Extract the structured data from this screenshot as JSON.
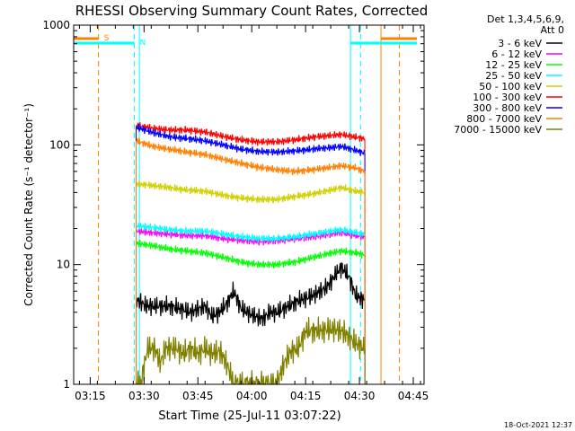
{
  "chart_data": {
    "type": "line",
    "title": "RHESSI Observing Summary Count Rates, Corrected",
    "xlabel": "Start Time (25-Jul-11 03:07:22)",
    "ylabel": "Corrected Count Rate (s⁻¹ detector⁻¹)",
    "yscale": "log",
    "xlim_minutes": [
      3.4,
      101.0
    ],
    "ylim": [
      1,
      1000
    ],
    "x_ticks": [
      {
        "minutes": 8,
        "label": "03:15"
      },
      {
        "minutes": 23,
        "label": "03:30"
      },
      {
        "minutes": 38,
        "label": "03:45"
      },
      {
        "minutes": 53,
        "label": "04:00"
      },
      {
        "minutes": 68,
        "label": "04:15"
      },
      {
        "minutes": 83,
        "label": "04:30"
      },
      {
        "minutes": 98,
        "label": "04:45"
      }
    ],
    "y_ticks": [
      {
        "value": 1,
        "label": "1"
      },
      {
        "value": 10,
        "label": "10"
      },
      {
        "value": 100,
        "label": "100"
      },
      {
        "value": 1000,
        "label": "1000"
      }
    ],
    "legend": {
      "position": "outside-right",
      "header": [
        "Det 1,3,4,5,6,9,",
        "Att 0"
      ]
    },
    "markers": {
      "saa": {
        "label": "S",
        "start": 3.4,
        "end": 10.3,
        "color": "#ff8000",
        "dash_at": [
          10.3,
          94.1
        ],
        "solid_at": [
          89.0
        ]
      },
      "night": {
        "label": "N",
        "start": 3.4,
        "end": 20.3,
        "color": "#00ffff",
        "dash_at": [
          20.3,
          83.3
        ],
        "solid_at": [
          21.7,
          80.5
        ]
      }
    },
    "series": [
      {
        "name": "3 - 6 keV",
        "color": "#000000",
        "start": 20.8,
        "end": 84.5,
        "points": [
          [
            21,
            5
          ],
          [
            24,
            4.5
          ],
          [
            27,
            4.5
          ],
          [
            30,
            4.5
          ],
          [
            33,
            4.3
          ],
          [
            36,
            4
          ],
          [
            40,
            4.5
          ],
          [
            42,
            3.7
          ],
          [
            44,
            4
          ],
          [
            46,
            4.7
          ],
          [
            48,
            6
          ],
          [
            50,
            4.3
          ],
          [
            53,
            3.8
          ],
          [
            56,
            3.5
          ],
          [
            58,
            4
          ],
          [
            60,
            4
          ],
          [
            62,
            4.3
          ],
          [
            66,
            5
          ],
          [
            70,
            5.5
          ],
          [
            74,
            6.5
          ],
          [
            76,
            8
          ],
          [
            78,
            9.5
          ],
          [
            80,
            8
          ],
          [
            82,
            5.5
          ],
          [
            84.5,
            5
          ]
        ]
      },
      {
        "name": "6 - 12 keV",
        "color": "#ff00ff",
        "start": 20.8,
        "end": 84.5,
        "points": [
          [
            21,
            19
          ],
          [
            25,
            18.5
          ],
          [
            30,
            18
          ],
          [
            35,
            17.5
          ],
          [
            40,
            17.5
          ],
          [
            45,
            16.5
          ],
          [
            50,
            16
          ],
          [
            55,
            15.5
          ],
          [
            60,
            15.8
          ],
          [
            65,
            16.5
          ],
          [
            70,
            17
          ],
          [
            75,
            18
          ],
          [
            78,
            18.5
          ],
          [
            82,
            17.5
          ],
          [
            84.5,
            17
          ]
        ]
      },
      {
        "name": "12 - 25 keV",
        "color": "#00ff00",
        "start": 20.8,
        "end": 84.5,
        "points": [
          [
            21,
            15
          ],
          [
            25,
            14.5
          ],
          [
            30,
            13.5
          ],
          [
            35,
            13
          ],
          [
            40,
            12.5
          ],
          [
            45,
            11.5
          ],
          [
            50,
            10.5
          ],
          [
            55,
            10
          ],
          [
            60,
            10
          ],
          [
            65,
            10.5
          ],
          [
            70,
            11.5
          ],
          [
            75,
            12.5
          ],
          [
            78,
            13
          ],
          [
            82,
            12.5
          ],
          [
            84.5,
            12
          ]
        ]
      },
      {
        "name": "25 - 50 keV",
        "color": "#00ffff",
        "start": 20.8,
        "end": 84.5,
        "points": [
          [
            21,
            21
          ],
          [
            25,
            20.5
          ],
          [
            30,
            19.5
          ],
          [
            35,
            19
          ],
          [
            40,
            19
          ],
          [
            45,
            18
          ],
          [
            50,
            17
          ],
          [
            55,
            16.5
          ],
          [
            60,
            16.5
          ],
          [
            65,
            17
          ],
          [
            70,
            18
          ],
          [
            75,
            19
          ],
          [
            78,
            19.5
          ],
          [
            82,
            18.5
          ],
          [
            84.5,
            18
          ]
        ]
      },
      {
        "name": "50 - 100 keV",
        "color": "#d0d000",
        "start": 20.8,
        "end": 84.5,
        "points": [
          [
            21,
            47
          ],
          [
            25,
            46
          ],
          [
            30,
            44
          ],
          [
            35,
            42
          ],
          [
            40,
            41
          ],
          [
            45,
            38
          ],
          [
            50,
            36
          ],
          [
            55,
            35
          ],
          [
            60,
            35
          ],
          [
            65,
            37
          ],
          [
            70,
            39
          ],
          [
            75,
            42
          ],
          [
            78,
            44
          ],
          [
            82,
            41
          ],
          [
            84.5,
            40
          ]
        ]
      },
      {
        "name": "100 - 300 keV",
        "color": "#ff0000",
        "start": 20.8,
        "end": 84.5,
        "points": [
          [
            21,
            145
          ],
          [
            25,
            138
          ],
          [
            30,
            133
          ],
          [
            35,
            133
          ],
          [
            40,
            128
          ],
          [
            45,
            118
          ],
          [
            50,
            110
          ],
          [
            55,
            106
          ],
          [
            60,
            106
          ],
          [
            65,
            110
          ],
          [
            70,
            116
          ],
          [
            75,
            120
          ],
          [
            78,
            122
          ],
          [
            82,
            116
          ],
          [
            84.5,
            112
          ]
        ]
      },
      {
        "name": "300 - 800 keV",
        "color": "#0000ff",
        "start": 20.8,
        "end": 84.5,
        "points": [
          [
            21,
            140
          ],
          [
            25,
            128
          ],
          [
            30,
            117
          ],
          [
            35,
            113
          ],
          [
            40,
            108
          ],
          [
            45,
            100
          ],
          [
            50,
            92
          ],
          [
            55,
            88
          ],
          [
            60,
            87
          ],
          [
            65,
            89
          ],
          [
            70,
            92
          ],
          [
            75,
            95
          ],
          [
            78,
            97
          ],
          [
            82,
            90
          ],
          [
            84.5,
            85
          ]
        ]
      },
      {
        "name": "800 - 7000 keV",
        "color": "#ff8000",
        "start": 20.8,
        "end": 84.5,
        "points": [
          [
            21,
            108
          ],
          [
            25,
            98
          ],
          [
            30,
            92
          ],
          [
            35,
            87
          ],
          [
            40,
            83
          ],
          [
            45,
            76
          ],
          [
            50,
            70
          ],
          [
            55,
            65
          ],
          [
            60,
            62
          ],
          [
            65,
            60
          ],
          [
            70,
            62
          ],
          [
            75,
            65
          ],
          [
            78,
            67
          ],
          [
            82,
            64
          ],
          [
            84.5,
            60
          ]
        ]
      },
      {
        "name": "7000 - 15000 keV",
        "color": "#808000",
        "start": 20.8,
        "end": 84.5,
        "points": [
          [
            22,
            1
          ],
          [
            24,
            2
          ],
          [
            26,
            2
          ],
          [
            27.5,
            1.5
          ],
          [
            29,
            2
          ],
          [
            32,
            2
          ],
          [
            34,
            1.8
          ],
          [
            36,
            2
          ],
          [
            38,
            1.8
          ],
          [
            40,
            2
          ],
          [
            42,
            1.8
          ],
          [
            44,
            1.9
          ],
          [
            46,
            1.5
          ],
          [
            48,
            1
          ],
          [
            60,
            1
          ],
          [
            62,
            1.5
          ],
          [
            64,
            1.9
          ],
          [
            66,
            2
          ],
          [
            68,
            2.8
          ],
          [
            72,
            2.8
          ],
          [
            75,
            2.9
          ],
          [
            78,
            2.8
          ],
          [
            80,
            2.5
          ],
          [
            82,
            2.2
          ],
          [
            84.5,
            2
          ]
        ]
      }
    ]
  },
  "footer": {
    "timestamp": "18-Oct-2021 12:37"
  }
}
